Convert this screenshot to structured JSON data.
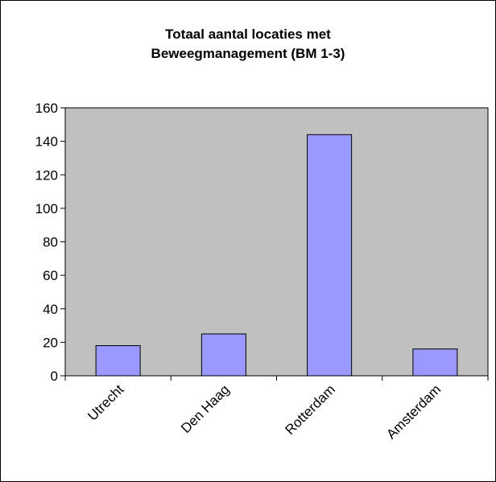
{
  "chart_data": {
    "type": "bar",
    "title_line1": "Totaal aantal locaties met",
    "title_line2": "Beweegmanagement (BM 1-3)",
    "categories": [
      "Utrecht",
      "Den Haag",
      "Rotterdam",
      "Amsterdam"
    ],
    "values": [
      18,
      25,
      144,
      16
    ],
    "ylim": [
      0,
      160
    ],
    "yticks": [
      0,
      20,
      40,
      60,
      80,
      100,
      120,
      140,
      160
    ],
    "xlabel": "",
    "ylabel": "",
    "grid": false,
    "legend": "none",
    "colors": {
      "plot_background": "#c0c0c0",
      "bar_fill": "#9999ff",
      "bar_stroke": "#000000",
      "axis": "#000000"
    }
  }
}
